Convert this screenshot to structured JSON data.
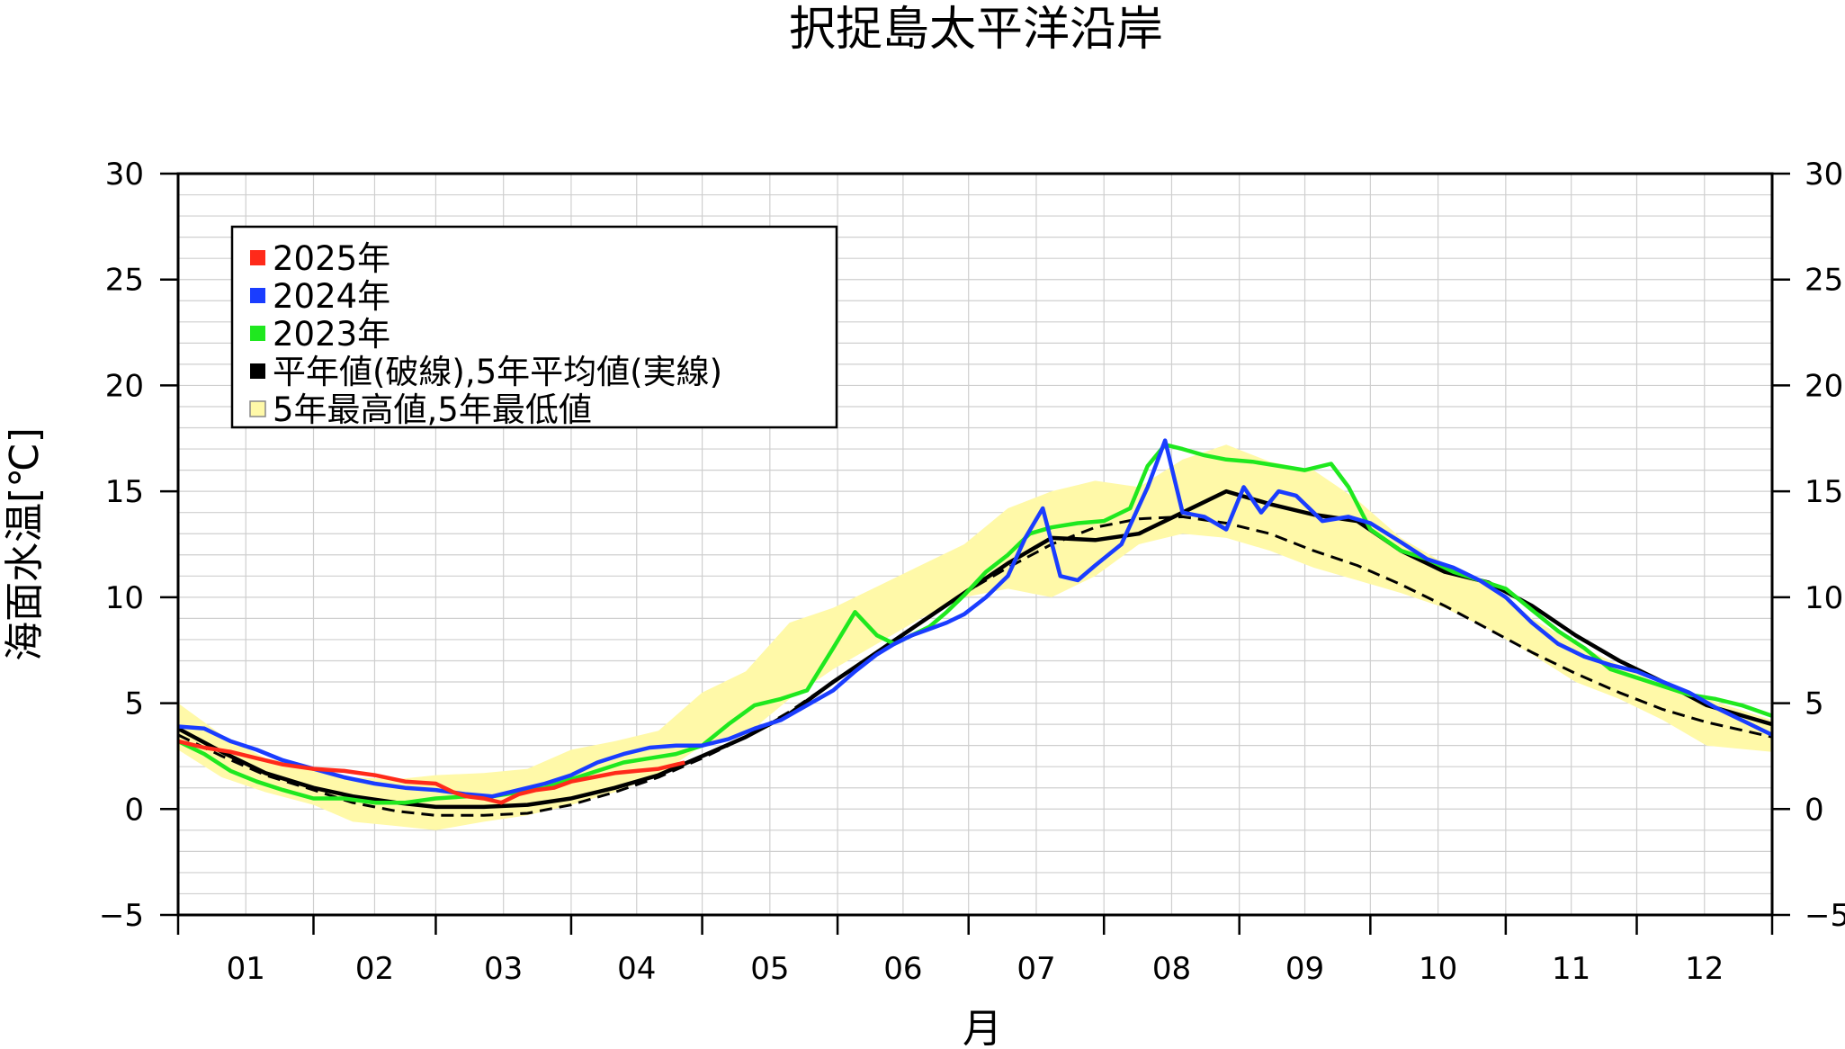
{
  "chart_data": {
    "type": "line",
    "title": "択捉島太平洋沿岸",
    "xlabel": "月",
    "ylabel": "海面水温[℃]",
    "ylim": [
      -5,
      30
    ],
    "xlim": [
      0,
      365
    ],
    "y_ticks": [
      -5,
      0,
      5,
      10,
      15,
      20,
      25,
      30
    ],
    "y_tick_labels": [
      "−5",
      "0",
      "5",
      "10",
      "15",
      "20",
      "25",
      "30"
    ],
    "month_labels": [
      "01",
      "02",
      "03",
      "04",
      "05",
      "06",
      "07",
      "08",
      "09",
      "10",
      "11",
      "12"
    ],
    "month_starts": [
      0,
      31,
      59,
      90,
      120,
      151,
      181,
      212,
      243,
      273,
      304,
      334,
      365
    ],
    "grid": true,
    "legend_position": "top-left",
    "legend": [
      {
        "label": "2025年",
        "color": "#ff2a1a"
      },
      {
        "label": "2024年",
        "color": "#1a3dff"
      },
      {
        "label": "2023年",
        "color": "#1fe81f"
      },
      {
        "label": "平年値(破線),5年平均値(実線)",
        "color": "#000000"
      },
      {
        "label": "5年最高値,5年最低値",
        "color": "#fff9a8"
      }
    ],
    "band": {
      "name": "5年最高値,5年最低値",
      "x": [
        0,
        10,
        20,
        31,
        40,
        50,
        59,
        70,
        80,
        90,
        100,
        110,
        120,
        130,
        140,
        150,
        160,
        170,
        180,
        190,
        200,
        210,
        220,
        230,
        240,
        250,
        260,
        270,
        280,
        290,
        300,
        310,
        320,
        330,
        340,
        350,
        365
      ],
      "upper": [
        5.0,
        3.5,
        2.4,
        2.0,
        1.5,
        1.4,
        1.6,
        1.7,
        1.9,
        2.8,
        3.2,
        3.7,
        5.5,
        6.5,
        8.8,
        9.5,
        10.5,
        11.5,
        12.5,
        14.2,
        15.0,
        15.5,
        15.2,
        16.5,
        17.2,
        16.4,
        16.0,
        14.6,
        12.8,
        11.6,
        10.7,
        9.0,
        7.8,
        6.8,
        5.8,
        5.2,
        4.2
      ],
      "lower": [
        2.8,
        1.5,
        0.8,
        0.2,
        -0.6,
        -0.8,
        -1.0,
        -0.6,
        -0.3,
        0.2,
        0.8,
        1.6,
        3.0,
        3.5,
        5.2,
        6.6,
        7.8,
        9.0,
        10.0,
        10.4,
        10.0,
        11.0,
        12.5,
        13.0,
        12.8,
        12.2,
        11.4,
        10.8,
        10.2,
        9.5,
        8.5,
        7.3,
        6.0,
        5.2,
        4.2,
        3.0,
        2.7
      ]
    },
    "series": [
      {
        "name": "2025年",
        "color": "#ff2a1a",
        "dashed": false,
        "x": [
          0,
          6,
          12,
          18,
          24,
          31,
          38,
          45,
          52,
          59,
          63,
          66,
          70,
          74,
          78,
          82,
          86,
          90,
          95,
          100,
          105,
          110,
          116
        ],
        "values": [
          3.2,
          2.9,
          2.7,
          2.4,
          2.1,
          1.9,
          1.8,
          1.6,
          1.3,
          1.2,
          0.8,
          0.6,
          0.5,
          0.3,
          0.7,
          0.9,
          1.0,
          1.3,
          1.5,
          1.7,
          1.8,
          1.9,
          2.2
        ]
      },
      {
        "name": "2024年",
        "color": "#1a3dff",
        "dashed": false,
        "x": [
          0,
          6,
          12,
          18,
          24,
          31,
          38,
          45,
          52,
          59,
          66,
          72,
          78,
          84,
          90,
          96,
          102,
          108,
          114,
          120,
          126,
          132,
          138,
          144,
          150,
          155,
          160,
          164,
          168,
          172,
          176,
          180,
          185,
          190,
          194,
          198,
          202,
          206,
          210,
          216,
          222,
          226,
          230,
          235,
          240,
          244,
          248,
          252,
          256,
          262,
          268,
          273,
          280,
          286,
          292,
          298,
          304,
          310,
          316,
          322,
          328,
          334,
          340,
          346,
          352,
          358,
          365
        ],
        "values": [
          3.9,
          3.8,
          3.2,
          2.8,
          2.3,
          1.9,
          1.5,
          1.2,
          1.0,
          0.9,
          0.7,
          0.6,
          0.9,
          1.2,
          1.6,
          2.2,
          2.6,
          2.9,
          3.0,
          3.0,
          3.3,
          3.8,
          4.2,
          4.9,
          5.6,
          6.5,
          7.3,
          7.8,
          8.2,
          8.5,
          8.8,
          9.2,
          10.0,
          11.0,
          12.8,
          14.2,
          11.0,
          10.8,
          11.5,
          12.5,
          15.2,
          17.4,
          14.0,
          13.8,
          13.2,
          15.2,
          14.0,
          15.0,
          14.8,
          13.6,
          13.8,
          13.5,
          12.6,
          11.8,
          11.4,
          10.8,
          10.0,
          8.8,
          7.8,
          7.2,
          6.8,
          6.5,
          6.0,
          5.5,
          4.8,
          4.2,
          3.5
        ]
      },
      {
        "name": "2023年",
        "color": "#1fe81f",
        "dashed": false,
        "x": [
          0,
          6,
          12,
          18,
          24,
          31,
          38,
          45,
          52,
          59,
          66,
          72,
          78,
          84,
          90,
          96,
          102,
          108,
          114,
          120,
          126,
          132,
          138,
          144,
          150,
          155,
          160,
          164,
          168,
          172,
          176,
          180,
          185,
          190,
          195,
          200,
          206,
          212,
          218,
          222,
          226,
          230,
          235,
          240,
          246,
          252,
          258,
          264,
          268,
          273,
          280,
          286,
          292,
          298,
          304,
          310,
          316,
          322,
          328,
          334,
          340,
          346,
          352,
          358,
          365
        ],
        "values": [
          3.2,
          2.6,
          1.8,
          1.3,
          0.9,
          0.5,
          0.5,
          0.3,
          0.3,
          0.5,
          0.6,
          0.6,
          0.8,
          1.0,
          1.4,
          1.8,
          2.2,
          2.4,
          2.6,
          3.0,
          4.0,
          4.9,
          5.2,
          5.6,
          7.6,
          9.3,
          8.2,
          7.8,
          8.2,
          8.6,
          9.3,
          10.1,
          11.2,
          12.0,
          13.0,
          13.3,
          13.5,
          13.6,
          14.2,
          16.2,
          17.2,
          17.0,
          16.7,
          16.5,
          16.4,
          16.2,
          16.0,
          16.3,
          15.2,
          13.2,
          12.2,
          11.8,
          11.2,
          10.8,
          10.4,
          9.4,
          8.4,
          7.6,
          6.6,
          6.2,
          5.8,
          5.4,
          5.2,
          4.9,
          4.4
        ]
      },
      {
        "name": "5年平均値",
        "color": "#000000",
        "dashed": false,
        "x": [
          0,
          10,
          20,
          31,
          40,
          50,
          59,
          70,
          80,
          90,
          100,
          110,
          120,
          130,
          140,
          150,
          160,
          170,
          180,
          190,
          200,
          210,
          220,
          230,
          240,
          250,
          260,
          270,
          280,
          290,
          300,
          310,
          320,
          330,
          340,
          350,
          365
        ],
        "values": [
          3.8,
          2.7,
          1.7,
          1.0,
          0.6,
          0.3,
          0.1,
          0.1,
          0.2,
          0.5,
          1.0,
          1.6,
          2.5,
          3.4,
          4.5,
          6.0,
          7.4,
          8.8,
          10.2,
          11.6,
          12.8,
          12.7,
          13.0,
          14.0,
          15.0,
          14.4,
          13.9,
          13.6,
          12.2,
          11.2,
          10.7,
          9.6,
          8.2,
          7.0,
          6.0,
          4.9,
          4.0
        ]
      },
      {
        "name": "平年値",
        "color": "#000000",
        "dashed": true,
        "x": [
          0,
          10,
          20,
          31,
          40,
          50,
          59,
          70,
          80,
          90,
          100,
          110,
          120,
          130,
          140,
          150,
          160,
          170,
          180,
          190,
          200,
          210,
          220,
          230,
          240,
          250,
          260,
          270,
          280,
          290,
          300,
          310,
          320,
          330,
          340,
          350,
          365
        ],
        "values": [
          3.5,
          2.5,
          1.6,
          0.9,
          0.3,
          -0.1,
          -0.3,
          -0.3,
          -0.2,
          0.2,
          0.8,
          1.5,
          2.4,
          3.4,
          4.6,
          6.0,
          7.3,
          8.8,
          10.2,
          11.4,
          12.5,
          13.3,
          13.7,
          13.8,
          13.5,
          13.0,
          12.2,
          11.5,
          10.6,
          9.6,
          8.5,
          7.4,
          6.4,
          5.5,
          4.7,
          4.1,
          3.4
        ]
      }
    ]
  }
}
